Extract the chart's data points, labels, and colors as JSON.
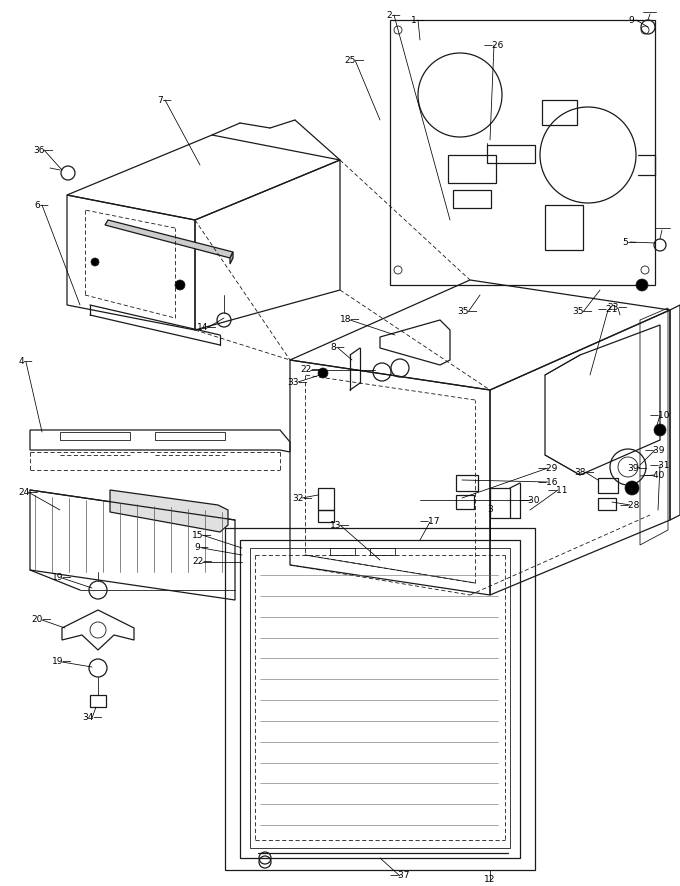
{
  "bg_color": "#ffffff",
  "line_color": "#1a1a1a",
  "fig_width": 6.8,
  "fig_height": 8.86,
  "dpi": 100
}
